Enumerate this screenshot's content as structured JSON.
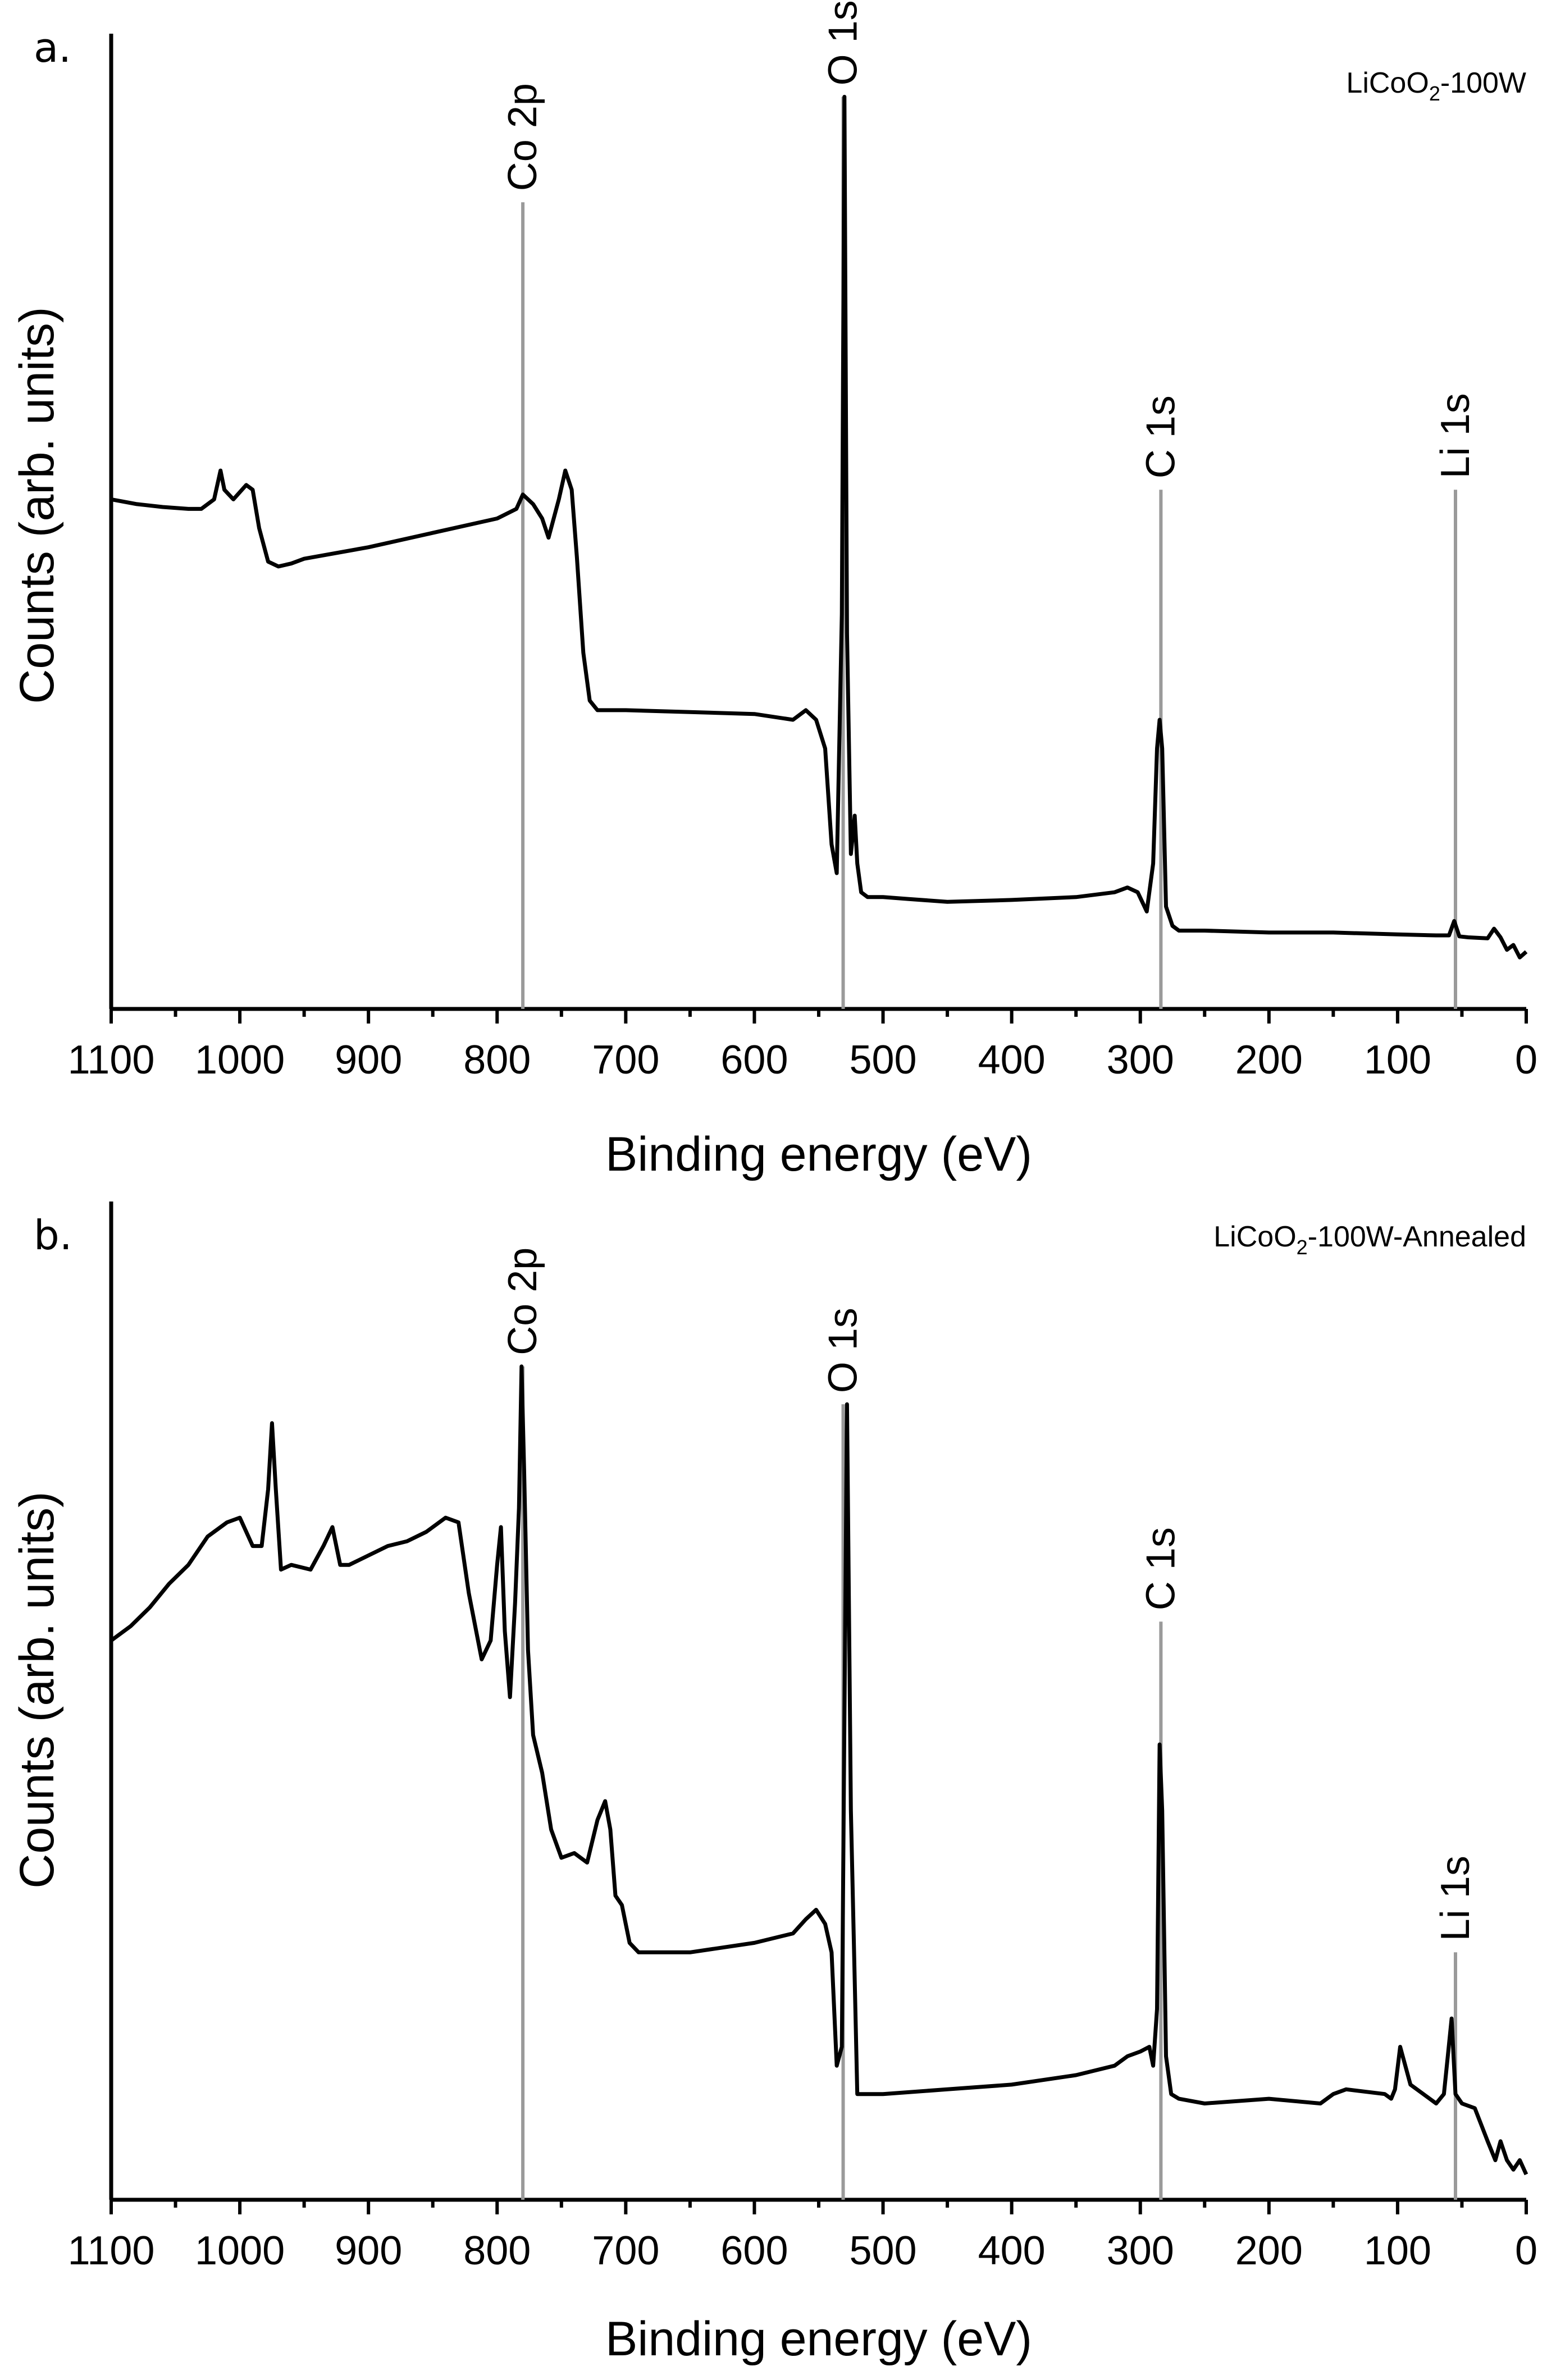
{
  "chart_data": [
    {
      "type": "line",
      "panel_label": "a.",
      "sample_label": "LiCoO",
      "sample_sub": "2",
      "sample_suffix": "-100W",
      "xlabel": "Binding energy (eV)",
      "ylabel": "Counts (arb. units)",
      "xlim": [
        1100,
        0
      ],
      "ylim": [
        0,
        100
      ],
      "xticks": [
        1100,
        1000,
        900,
        800,
        700,
        600,
        500,
        400,
        300,
        200,
        100,
        0
      ],
      "xtick_labels": [
        "1100",
        "1000",
        "900",
        "800",
        "700",
        "600",
        "500",
        "400",
        "300",
        "200",
        "100",
        "0"
      ],
      "peaks": [
        {
          "label": "Co 2p",
          "x": 780,
          "top": 83
        },
        {
          "label": "O 1s",
          "x": 531,
          "top": 94
        },
        {
          "label": "C 1s",
          "x": 284,
          "top": 53
        },
        {
          "label": "Li 1s",
          "x": 55,
          "top": 53
        }
      ],
      "series": [
        {
          "name": "LiCoO2-100W",
          "x": [
            1100,
            1080,
            1060,
            1040,
            1030,
            1020,
            1015,
            1012,
            1005,
            995,
            990,
            985,
            978,
            970,
            960,
            950,
            900,
            850,
            800,
            785,
            780,
            772,
            765,
            760,
            752,
            747,
            742,
            738,
            733,
            728,
            722,
            700,
            650,
            600,
            570,
            560,
            552,
            545,
            540,
            536,
            532,
            530,
            528,
            525,
            522,
            520,
            517,
            512,
            500,
            480,
            450,
            400,
            350,
            320,
            310,
            302,
            295,
            290,
            287,
            285,
            283,
            280,
            275,
            270,
            250,
            200,
            150,
            100,
            70,
            60,
            56,
            52,
            45,
            30,
            25,
            20,
            15,
            10,
            5,
            0
          ],
          "y": [
            52,
            51.5,
            51.2,
            51,
            51,
            52,
            55,
            53,
            52,
            53.5,
            53,
            49,
            45.5,
            45,
            45.3,
            45.8,
            47,
            48.5,
            50,
            51,
            52.5,
            51.5,
            50,
            48,
            52,
            55,
            53,
            46,
            36,
            31,
            30,
            30,
            29.8,
            29.6,
            29,
            30,
            29,
            26,
            16,
            13,
            40,
            94,
            38,
            15,
            19,
            14,
            11,
            10.5,
            10.5,
            10.3,
            10,
            10.2,
            10.5,
            11,
            11.5,
            11,
            9,
            14,
            26,
            29,
            26,
            9.5,
            7.5,
            7,
            7,
            6.8,
            6.8,
            6.6,
            6.5,
            6.5,
            8,
            6.4,
            6.3,
            6.2,
            7.2,
            6.3,
            5,
            5.5,
            4.2,
            4.8
          ]
        }
      ]
    },
    {
      "type": "line",
      "panel_label": "b.",
      "sample_label": "LiCoO",
      "sample_sub": "2",
      "sample_suffix": "-100W-Annealed",
      "xlabel": "Binding energy (eV)",
      "ylabel": "Counts (arb. units)",
      "xlim": [
        1100,
        0
      ],
      "ylim": [
        0,
        100
      ],
      "xticks": [
        1100,
        1000,
        900,
        800,
        700,
        600,
        500,
        400,
        300,
        200,
        100,
        0
      ],
      "xtick_labels": [
        "1100",
        "1000",
        "900",
        "800",
        "700",
        "600",
        "500",
        "400",
        "300",
        "200",
        "100",
        "0"
      ],
      "peaks": [
        {
          "label": "Co 2p",
          "x": 780,
          "top": 87
        },
        {
          "label": "O 1s",
          "x": 531,
          "top": 83
        },
        {
          "label": "C 1s",
          "x": 284,
          "top": 60
        },
        {
          "label": "Li 1s",
          "x": 55,
          "top": 25
        }
      ],
      "series": [
        {
          "name": "LiCoO2-100W-Annealed",
          "x": [
            1100,
            1085,
            1070,
            1055,
            1040,
            1025,
            1010,
            1000,
            990,
            983,
            978,
            975,
            972,
            968,
            960,
            945,
            935,
            928,
            922,
            915,
            900,
            885,
            870,
            855,
            840,
            830,
            822,
            812,
            805,
            800,
            797,
            794,
            790,
            786,
            783,
            781,
            779,
            776,
            772,
            765,
            758,
            750,
            740,
            730,
            722,
            716,
            712,
            708,
            703,
            697,
            690,
            650,
            600,
            570,
            560,
            552,
            545,
            540,
            536,
            532,
            530,
            528,
            525,
            520,
            500,
            450,
            400,
            350,
            320,
            310,
            300,
            293,
            290,
            287,
            285,
            283,
            280,
            276,
            270,
            250,
            200,
            160,
            150,
            140,
            110,
            105,
            102,
            98,
            90,
            80,
            70,
            64,
            61,
            58,
            55,
            50,
            40,
            30,
            24,
            20,
            15,
            10,
            5,
            0
          ],
          "y": [
            58,
            59.5,
            61.5,
            64,
            66,
            69,
            70.5,
            71,
            68,
            68,
            74,
            81,
            74,
            65.5,
            66,
            65.5,
            68,
            70,
            66,
            66,
            67,
            68,
            68.5,
            69.5,
            71,
            70.5,
            63,
            56,
            58,
            66,
            70,
            59,
            52,
            62,
            72,
            87,
            76,
            57,
            48,
            44,
            38,
            35,
            35.5,
            34.5,
            39,
            41,
            38,
            31,
            30,
            26,
            25,
            25,
            26,
            27,
            28.5,
            29.5,
            28,
            25,
            13,
            15,
            50,
            83,
            40,
            10,
            10,
            10.5,
            11,
            12,
            13,
            14,
            14.5,
            15,
            13,
            19,
            47,
            40,
            14,
            10,
            9.5,
            9,
            9.5,
            9,
            10,
            10.5,
            10,
            9.5,
            10.5,
            15,
            11,
            10,
            9,
            10,
            14,
            18,
            10,
            9,
            8.5,
            5,
            3,
            5,
            3,
            2,
            3,
            1.5
          ]
        }
      ]
    }
  ]
}
